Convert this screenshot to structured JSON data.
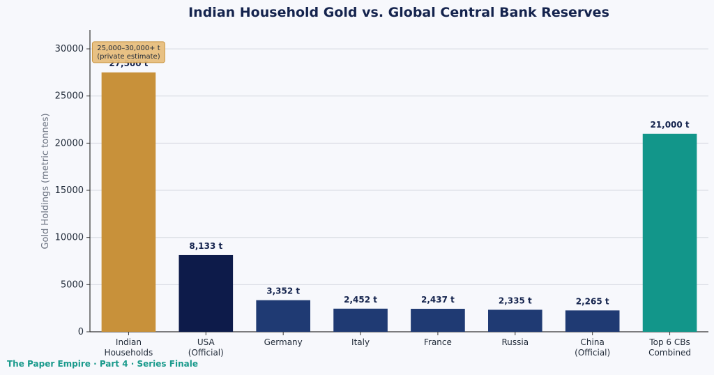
{
  "footer": "The Paper Empire · Part 4 · Series Finale",
  "chart_data": {
    "type": "bar",
    "title": "Indian Household Gold vs. Global Central Bank Reserves",
    "xlabel": "",
    "ylabel": "Gold Holdings (metric tonnes)",
    "ylim": [
      0,
      32000
    ],
    "yticks": [
      0,
      5000,
      10000,
      15000,
      20000,
      25000,
      30000
    ],
    "grid": "horizontal",
    "categories": [
      [
        "Indian",
        "Households"
      ],
      [
        "USA",
        "(Official)"
      ],
      [
        "Germany"
      ],
      [
        "Italy"
      ],
      [
        "France"
      ],
      [
        "Russia"
      ],
      [
        "China",
        "(Official)"
      ],
      [
        "Top 6 CBs",
        "Combined"
      ]
    ],
    "values": [
      27500,
      8133,
      3352,
      2452,
      2437,
      2335,
      2265,
      21000
    ],
    "data_labels": [
      "27,500 t",
      "8,133 t",
      "3,352 t",
      "2,452 t",
      "2,437 t",
      "2,335 t",
      "2,265 t",
      "21,000 t"
    ],
    "colors": [
      "#c8913a",
      "#0d1b4a",
      "#1f3a73",
      "#1f3a73",
      "#1f3a73",
      "#1f3a73",
      "#1f3a73",
      "#12968a"
    ],
    "annotation": {
      "text": [
        "25,000–30,000+ t",
        "(private estimate)"
      ],
      "category_index": 0,
      "box_color": "#e8bf7e"
    }
  }
}
